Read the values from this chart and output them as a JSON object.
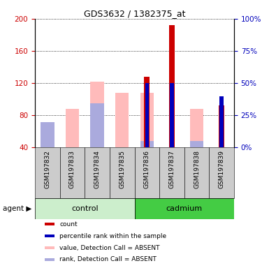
{
  "title": "GDS3632 / 1382375_at",
  "samples": [
    "GSM197832",
    "GSM197833",
    "GSM197834",
    "GSM197835",
    "GSM197836",
    "GSM197837",
    "GSM197838",
    "GSM197839"
  ],
  "count_values": [
    0,
    0,
    0,
    0,
    128,
    192,
    0,
    92
  ],
  "percentile_values": [
    0,
    0,
    0,
    0,
    50,
    50,
    0,
    40
  ],
  "absent_value_bars": [
    48,
    88,
    122,
    108,
    108,
    0,
    88,
    0
  ],
  "absent_rank_bars": [
    72,
    0,
    95,
    0,
    48,
    0,
    48,
    0
  ],
  "ylim_left": [
    40,
    200
  ],
  "ylim_right": [
    0,
    100
  ],
  "yticks_left": [
    40,
    80,
    120,
    160,
    200
  ],
  "yticks_right": [
    0,
    25,
    50,
    75,
    100
  ],
  "control_count": 4,
  "cadmium_count": 4,
  "colors": {
    "count": "#cc0000",
    "percentile": "#0000bb",
    "absent_value": "#ffbbbb",
    "absent_rank": "#aaaadd",
    "control_bg": "#cceecc",
    "cadmium_bg": "#44cc44",
    "tick_bg": "#cccccc",
    "axis_red": "#cc0000",
    "axis_blue": "#0000bb"
  },
  "legend_items": [
    {
      "label": "count",
      "color": "#cc0000"
    },
    {
      "label": "percentile rank within the sample",
      "color": "#0000bb"
    },
    {
      "label": "value, Detection Call = ABSENT",
      "color": "#ffbbbb"
    },
    {
      "label": "rank, Detection Call = ABSENT",
      "color": "#aaaadd"
    }
  ]
}
